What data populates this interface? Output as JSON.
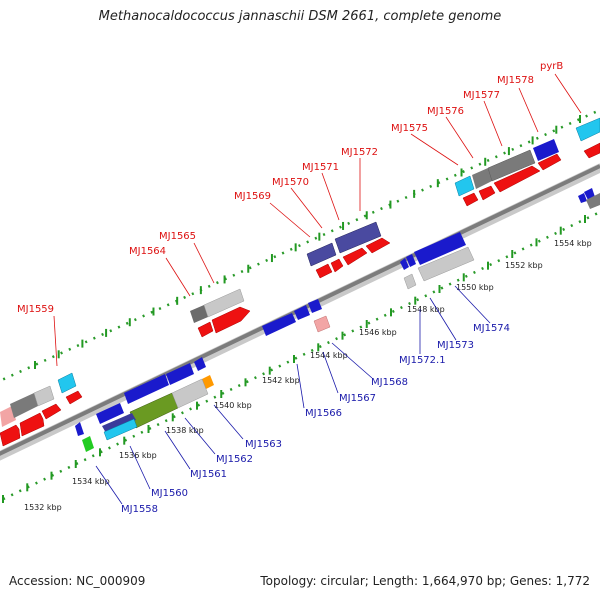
{
  "title": "Methanocaldococcus jannaschii DSM 2661, complete genome",
  "footer": {
    "accession": "Accession: NC_000909",
    "stats": "Topology: circular; Length: 1,664,970 bp; Genes: 1,772"
  },
  "colors": {
    "label_top": "#dd1111",
    "label_bottom": "#1a1aaa",
    "tick": "#229922",
    "backbone": "#8a8a8a"
  },
  "scale_ticks": [
    "1532 kbp",
    "1534 kbp",
    "1536 kbp",
    "1538 kbp",
    "1540 kbp",
    "1542 kbp",
    "1544 kbp",
    "1546 kbp",
    "1548 kbp",
    "1550 kbp",
    "1552 kbp",
    "1554 kbp"
  ],
  "genes_top": [
    {
      "label": "MJ1559",
      "color": "#dd1111"
    },
    {
      "label": "MJ1564",
      "color": "#dd1111"
    },
    {
      "label": "MJ1565",
      "color": "#dd1111"
    },
    {
      "label": "MJ1569",
      "color": "#dd1111"
    },
    {
      "label": "MJ1570",
      "color": "#dd1111"
    },
    {
      "label": "MJ1571",
      "color": "#dd1111"
    },
    {
      "label": "MJ1572",
      "color": "#dd1111"
    },
    {
      "label": "MJ1575",
      "color": "#dd1111"
    },
    {
      "label": "MJ1576",
      "color": "#dd1111"
    },
    {
      "label": "MJ1577",
      "color": "#dd1111"
    },
    {
      "label": "MJ1578",
      "color": "#dd1111"
    },
    {
      "label": "pyrB",
      "color": "#dd1111"
    }
  ],
  "genes_bottom": [
    {
      "label": "MJ1558"
    },
    {
      "label": "MJ1560"
    },
    {
      "label": "MJ1561"
    },
    {
      "label": "MJ1562"
    },
    {
      "label": "MJ1563"
    },
    {
      "label": "MJ1566"
    },
    {
      "label": "MJ1567"
    },
    {
      "label": "MJ1568"
    },
    {
      "label": "MJ1572.1"
    },
    {
      "label": "MJ1573"
    },
    {
      "label": "MJ1574"
    }
  ]
}
